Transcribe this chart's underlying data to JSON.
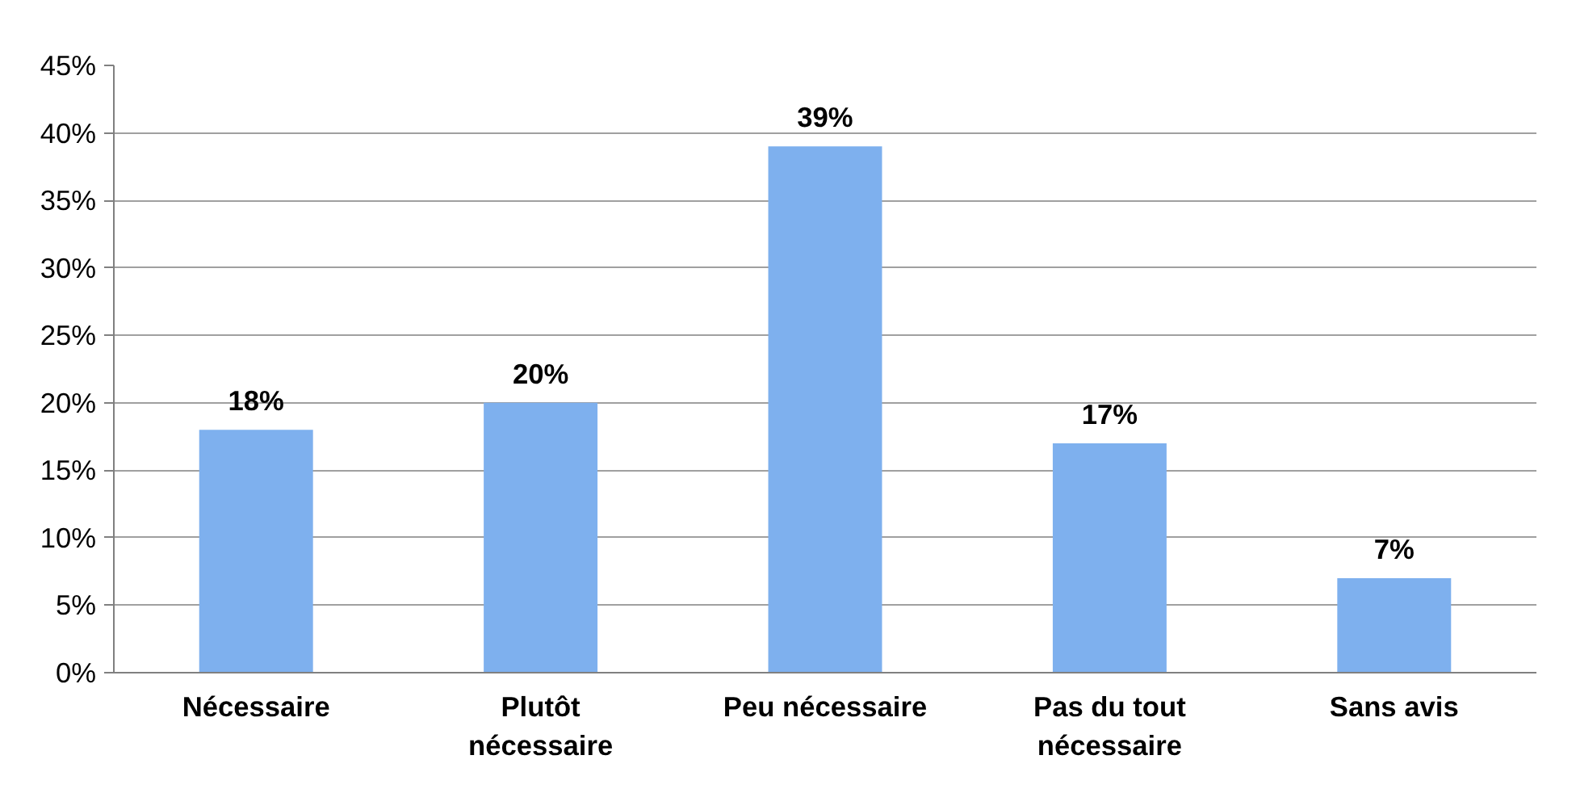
{
  "chart_data": {
    "type": "bar",
    "categories": [
      "Nécessaire",
      "Plutôt nécessaire",
      "Peu nécessaire",
      "Pas du tout nécessaire",
      "Sans avis"
    ],
    "values": [
      18,
      20,
      39,
      17,
      7
    ],
    "value_labels": [
      "18%",
      "20%",
      "39%",
      "17%",
      "7%"
    ],
    "color": "#7eb0ee",
    "ylim": [
      0,
      45
    ],
    "yticks": [
      {
        "value": 0,
        "label": "0%"
      },
      {
        "value": 5,
        "label": "5%"
      },
      {
        "value": 10,
        "label": "10%"
      },
      {
        "value": 15,
        "label": "15%"
      },
      {
        "value": 20,
        "label": "20%"
      },
      {
        "value": 25,
        "label": "25%"
      },
      {
        "value": 30,
        "label": "30%"
      },
      {
        "value": 35,
        "label": "35%"
      },
      {
        "value": 40,
        "label": "40%"
      },
      {
        "value": 45,
        "label": "45%"
      }
    ],
    "grid": "y"
  }
}
